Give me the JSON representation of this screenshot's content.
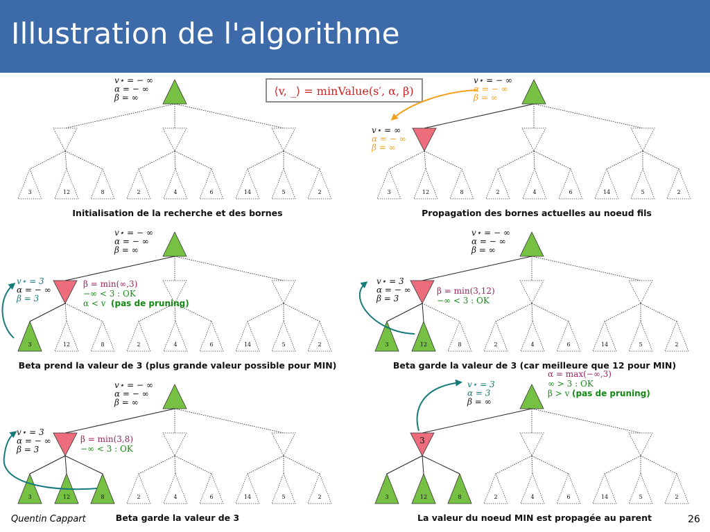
{
  "title": "Illustration de l'algorithme",
  "footer": {
    "author": "Quentin Cappart",
    "page": "26"
  },
  "colors": {
    "max_node": "#76c043",
    "min_node": "#ee6d7d",
    "teal": "#147a7a",
    "orange": "#f2a020",
    "purple": "#99235e",
    "green": "#138a13",
    "banner": "#3d6aa8"
  },
  "leaf_values": [
    "3",
    "12",
    "8",
    "2",
    "4",
    "6",
    "14",
    "5",
    "2"
  ],
  "formula": "⟨v, _⟩ = minValue(s′, α, β)",
  "panels": [
    {
      "caption": "Initialisation de la recherche et des bornes",
      "root_labels": [
        "v⋆ = − ∞",
        "α = − ∞",
        "β = ∞"
      ]
    },
    {
      "caption": "Propagation des bornes actuelles au noeud fils",
      "root_labels": [
        "v⋆ = − ∞",
        "α = − ∞",
        "β = ∞"
      ],
      "child_labels": [
        "v⋆ = ∞",
        "α = − ∞",
        "β = ∞"
      ]
    },
    {
      "caption": "Beta prend la valeur de 3 (plus grande valeur possible pour MIN)",
      "root_labels": [
        "v⋆ = − ∞",
        "α = − ∞",
        "β = ∞"
      ],
      "child_labels": [
        "v⋆ = 3",
        "α = − ∞",
        "β = 3"
      ],
      "notes": [
        "β = min(∞,3)",
        "−∞ < 3 : OK",
        "α < v",
        "(pas de pruning)"
      ]
    },
    {
      "caption": "Beta garde la valeur de 3 (car meilleure que 12 pour MIN)",
      "root_labels": [
        "v⋆ = − ∞",
        "α = − ∞",
        "β = ∞"
      ],
      "child_labels": [
        "v⋆ = 3",
        "α = − ∞",
        "β = 3"
      ],
      "notes": [
        "β = min(3,12)",
        "−∞ < 3 : OK"
      ]
    },
    {
      "caption": "Beta garde la valeur de 3",
      "root_labels": [
        "v⋆ = − ∞",
        "α = − ∞",
        "β = ∞"
      ],
      "child_labels": [
        "v⋆ = 3",
        "α = − ∞",
        "β = 3"
      ],
      "notes": [
        "β = min(3,8)",
        "−∞ < 3 : OK"
      ]
    },
    {
      "caption": "La valeur du noeud MIN est propagée au parent",
      "root_labels": [
        "v⋆ = 3",
        "α = 3",
        "β = ∞"
      ],
      "child_value": "3",
      "notes": [
        "α = max(−∞,3)",
        "∞ > 3 : OK",
        "β > v",
        "(pas de pruning)"
      ]
    }
  ]
}
